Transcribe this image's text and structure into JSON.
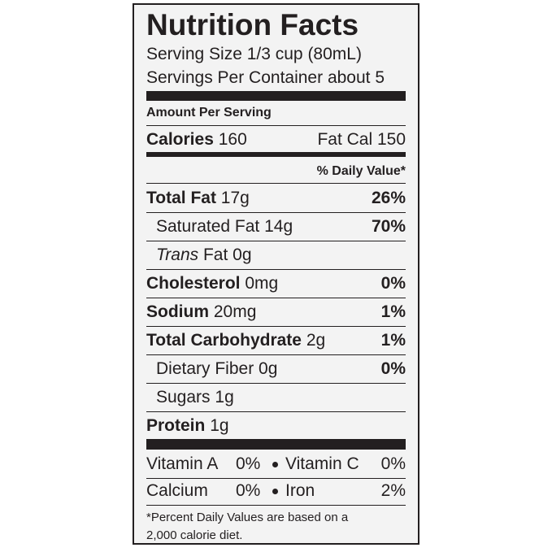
{
  "title": "Nutrition Facts",
  "serving_size": "Serving Size 1/3 cup (80mL)",
  "servings_per_container": "Servings Per Container about 5",
  "amount_per_serving": "Amount Per Serving",
  "calories": {
    "label": "Calories",
    "value": "160",
    "fat_calories": "Fat Cal 150"
  },
  "daily_value_header": "% Daily Value*",
  "nutrients": [
    {
      "name": "Total Fat",
      "amount": "17g",
      "dv": "26%"
    },
    {
      "name": "Saturated Fat",
      "amount": "14g",
      "dv": "70%"
    },
    {
      "name_italic": "Trans",
      "name": "Fat",
      "amount": "0g"
    },
    {
      "name": "Cholesterol",
      "amount": "0mg",
      "dv": "0%"
    },
    {
      "name": "Sodium",
      "amount": "20mg",
      "dv": "1%"
    },
    {
      "name": "Total Carbohydrate",
      "amount": "2g",
      "dv": "1%"
    },
    {
      "name": "Dietary Fiber",
      "amount": "0g",
      "dv": "0%"
    },
    {
      "name": "Sugars",
      "amount": "1g"
    },
    {
      "name": "Protein",
      "amount": "1g"
    }
  ],
  "vitamins": [
    [
      {
        "name": "Vitamin A",
        "dv": "0%"
      },
      {
        "name": "Vitamin C",
        "dv": "0%"
      }
    ],
    [
      {
        "name": "Calcium",
        "dv": "0%"
      },
      {
        "name": "Iron",
        "dv": "2%"
      }
    ]
  ],
  "footnote": "*Percent Daily Values are based on a 2,000 calorie diet."
}
